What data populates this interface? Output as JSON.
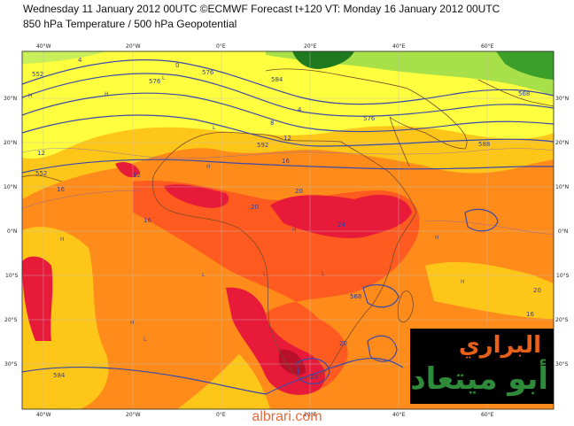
{
  "header": {
    "line1": "Wednesday 11 January 2012 00UTC ©ECMWF Forecast t+120 VT: Monday 16 January 2012 00UTC",
    "line2": "850 hPa Temperature / 500 hPa Geopotential"
  },
  "axes": {
    "lon_labels": [
      "40°W",
      "20°W",
      "0°E",
      "20°E",
      "40°E",
      "60°E"
    ],
    "lat_labels": [
      "30°N",
      "20°N",
      "10°N",
      "0°N",
      "10°S",
      "20°S",
      "30°S"
    ]
  },
  "contour_labels": {
    "geopotential": [
      "552",
      "576",
      "584",
      "576",
      "592",
      "576",
      "568",
      "588",
      "552",
      "568",
      "584"
    ],
    "temperature": [
      "4",
      "0",
      "4",
      "8",
      "12",
      "16",
      "12",
      "16",
      "20",
      "24",
      "20",
      "16",
      "12",
      "20",
      "23",
      "16",
      "20"
    ]
  },
  "pressure_centres": [
    "H",
    "L"
  ],
  "colors": {
    "cold": "#1f7a1f",
    "cool": "#a8e04a",
    "mild": "#ffff40",
    "warm": "#ffc61a",
    "hot": "#ff8c1a",
    "very_hot": "#ff5a1f",
    "extreme": "#e81a3a",
    "contour": "#3b4aa8",
    "coast": "#7a4a2a"
  },
  "watermark": {
    "line1": "البراري",
    "line2": "أبو ميتعاد"
  },
  "footer": {
    "site": "albrari.com"
  }
}
